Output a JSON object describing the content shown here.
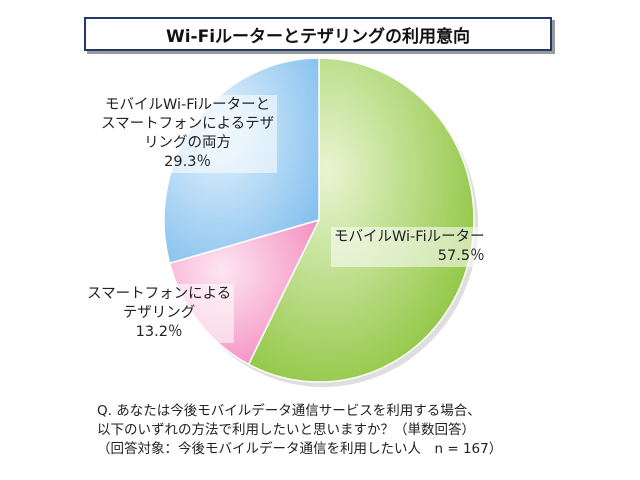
{
  "title": "Wi-Fiルーターとテザリングの利用意向",
  "chart_data": {
    "type": "pie",
    "title": "Wi-Fiルーターとテザリングの利用意向",
    "slices": [
      {
        "label_lines": [
          "モバイルWi-Fiルーター"
        ],
        "value": 57.5,
        "value_label": "57.5％",
        "color": "#9ccf4e"
      },
      {
        "label_lines": [
          "スマートフォンによる",
          "テザリング"
        ],
        "value": 13.2,
        "value_label": "13.2％",
        "color": "#f7a9cf"
      },
      {
        "label_lines": [
          "モバイルWi-Fiルーターと",
          "スマートフォンによるテザ",
          "リングの両方"
        ],
        "value": 29.3,
        "value_label": "29.3％",
        "color": "#9ccdf2"
      }
    ],
    "start": "12 o'clock",
    "direction": "clockwise",
    "legend": "none"
  },
  "question": {
    "lines": [
      "Q. あなたは今後モバイルデータ通信サービスを利用する場合、",
      "以下のいずれの方法で利用したいと思いますか？（単数回答）",
      "（回答対象：今後モバイルデータ通信を利用したい人　n = 167）"
    ]
  }
}
